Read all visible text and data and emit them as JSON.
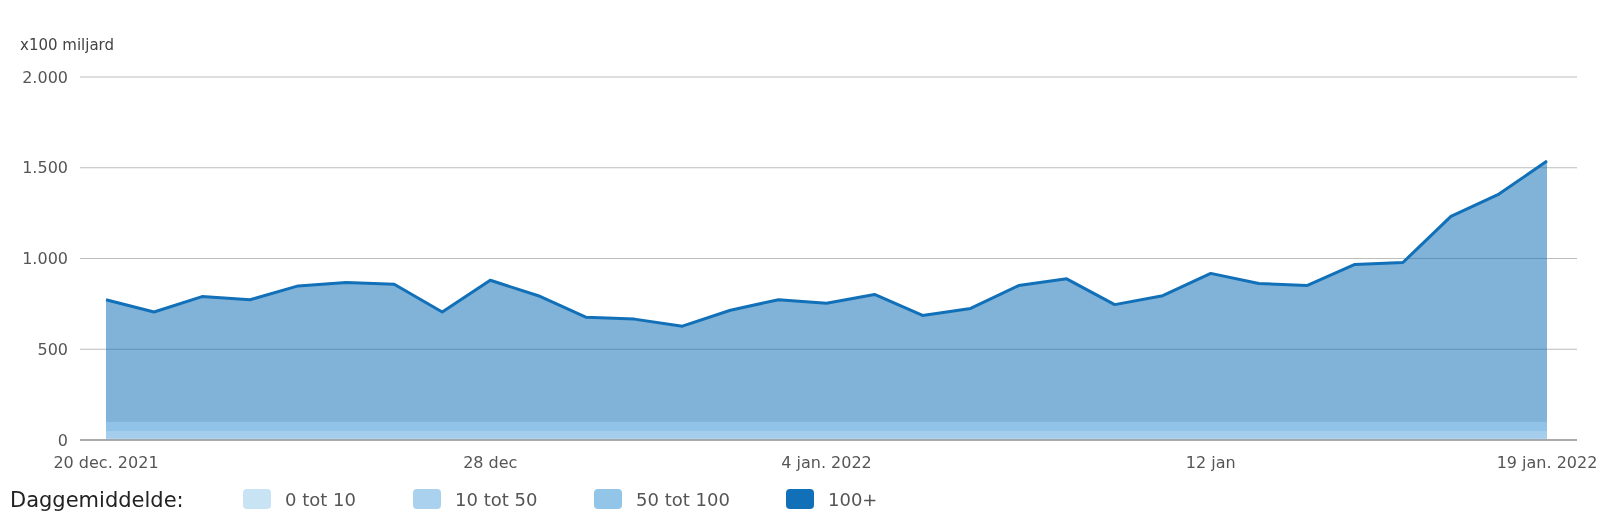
{
  "chart_data": {
    "type": "area",
    "ylabel": "x100 miljard",
    "x": [
      "2021-12-20",
      "2021-12-21",
      "2021-12-22",
      "2021-12-23",
      "2021-12-24",
      "2021-12-25",
      "2021-12-26",
      "2021-12-27",
      "2021-12-28",
      "2021-12-29",
      "2021-12-30",
      "2021-12-31",
      "2022-01-01",
      "2022-01-02",
      "2022-01-03",
      "2022-01-04",
      "2022-01-05",
      "2022-01-06",
      "2022-01-07",
      "2022-01-08",
      "2022-01-09",
      "2022-01-10",
      "2022-01-11",
      "2022-01-12",
      "2022-01-13",
      "2022-01-14",
      "2022-01-15",
      "2022-01-16",
      "2022-01-17",
      "2022-01-18",
      "2022-01-19"
    ],
    "series": [
      {
        "name": "100+",
        "color": "#1170b8",
        "values": [
          773,
          705,
          790,
          773,
          849,
          868,
          858,
          705,
          880,
          795,
          676,
          666,
          627,
          715,
          773,
          753,
          802,
          686,
          725,
          851,
          888,
          746,
          795,
          918,
          862,
          851,
          967,
          978,
          1232,
          1355,
          1537
        ]
      }
    ],
    "xlim": [
      "2021-12-20",
      "2022-01-19"
    ],
    "xticks": [
      {
        "value": "2021-12-20",
        "label": "20 dec. 2021"
      },
      {
        "value": "2021-12-28",
        "label": "28 dec"
      },
      {
        "value": "2022-01-04",
        "label": "4 jan. 2022"
      },
      {
        "value": "2022-01-12",
        "label": "12 jan"
      },
      {
        "value": "2022-01-19",
        "label": "19 jan. 2022"
      }
    ],
    "ylim": [
      0,
      2000
    ],
    "yticks": [
      0,
      500,
      {
        "value": 1000,
        "label": "1.000"
      },
      {
        "value": 1500,
        "label": "1.500"
      },
      {
        "value": 2000,
        "label": "2.000"
      }
    ],
    "bands": [
      {
        "axis": "y",
        "from": 0,
        "to": 10,
        "label": "0 tot 10",
        "color": "#c8e3f4"
      },
      {
        "axis": "y",
        "from": 10,
        "to": 50,
        "label": "10 tot 50",
        "color": "#aad2ee"
      },
      {
        "axis": "y",
        "from": 50,
        "to": 100,
        "label": "50 tot 100",
        "color": "#93c5e9"
      }
    ],
    "grid": "y",
    "legend": "bottom",
    "legend_title": "Daggemiddelde:"
  }
}
